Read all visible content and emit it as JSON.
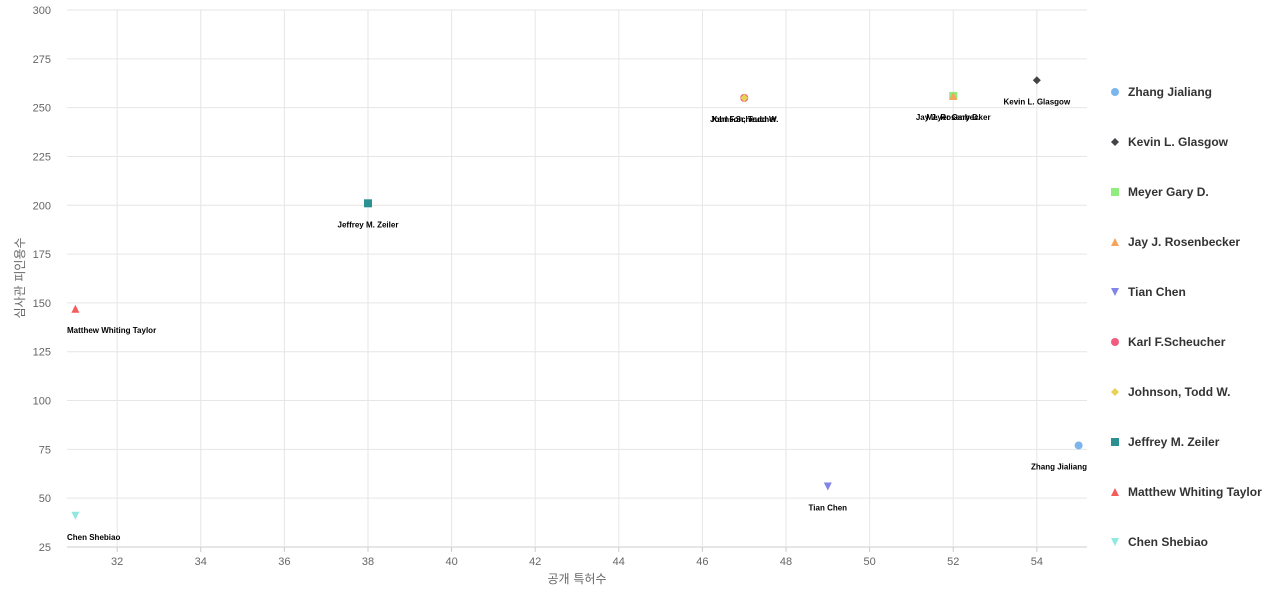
{
  "chart_data": {
    "type": "scatter",
    "xlabel": "공개 특허수",
    "ylabel": "심사관 피인용수",
    "xlim": [
      30.8,
      55.2
    ],
    "ylim": [
      25,
      300
    ],
    "xticks": [
      32,
      34,
      36,
      38,
      40,
      42,
      44,
      46,
      48,
      50,
      52,
      54
    ],
    "yticks": [
      25,
      50,
      75,
      100,
      125,
      150,
      175,
      200,
      225,
      250,
      275,
      300
    ],
    "grid": true,
    "legend_position": "right",
    "series": [
      {
        "name": "Zhang Jialiang",
        "marker": "circle",
        "color": "#7cb5ec",
        "points": [
          {
            "x": 55,
            "y": 77,
            "label": "Zhang Jialiang"
          }
        ]
      },
      {
        "name": "Kevin L. Glasgow",
        "marker": "diamond",
        "color": "#434348",
        "points": [
          {
            "x": 54,
            "y": 264,
            "label": "Kevin L. Glasgow"
          }
        ]
      },
      {
        "name": "Meyer Gary D.",
        "marker": "square",
        "color": "#90ed7d",
        "points": [
          {
            "x": 52,
            "y": 256,
            "label": "Meyer Gary D."
          }
        ]
      },
      {
        "name": "Jay J. Rosenbecker",
        "marker": "triangle",
        "color": "#f7a35c",
        "points": [
          {
            "x": 52,
            "y": 256,
            "label": "Jay J. Rosenbecker"
          }
        ]
      },
      {
        "name": "Tian Chen",
        "marker": "triangle-down",
        "color": "#8085e9",
        "points": [
          {
            "x": 49,
            "y": 56,
            "label": "Tian Chen"
          }
        ]
      },
      {
        "name": "Karl F.Scheucher",
        "marker": "circle",
        "color": "#f15c80",
        "points": [
          {
            "x": 47,
            "y": 255,
            "label": "Karl F.Scheucher"
          }
        ]
      },
      {
        "name": "Johnson, Todd W.",
        "marker": "diamond",
        "color": "#e4d354",
        "points": [
          {
            "x": 47,
            "y": 255,
            "label": "Johnson, Todd W."
          }
        ]
      },
      {
        "name": "Jeffrey M. Zeiler",
        "marker": "square",
        "color": "#2b908f",
        "points": [
          {
            "x": 38,
            "y": 201,
            "label": "Jeffrey M. Zeiler"
          }
        ]
      },
      {
        "name": "Matthew Whiting Taylor",
        "marker": "triangle",
        "color": "#f45b5b",
        "points": [
          {
            "x": 31,
            "y": 147,
            "label": "Matthew Whiting Taylor"
          }
        ]
      },
      {
        "name": "Chen Shebiao",
        "marker": "triangle-down",
        "color": "#91e8e1",
        "points": [
          {
            "x": 31,
            "y": 41,
            "label": "Chen Shebiao"
          }
        ]
      }
    ]
  }
}
